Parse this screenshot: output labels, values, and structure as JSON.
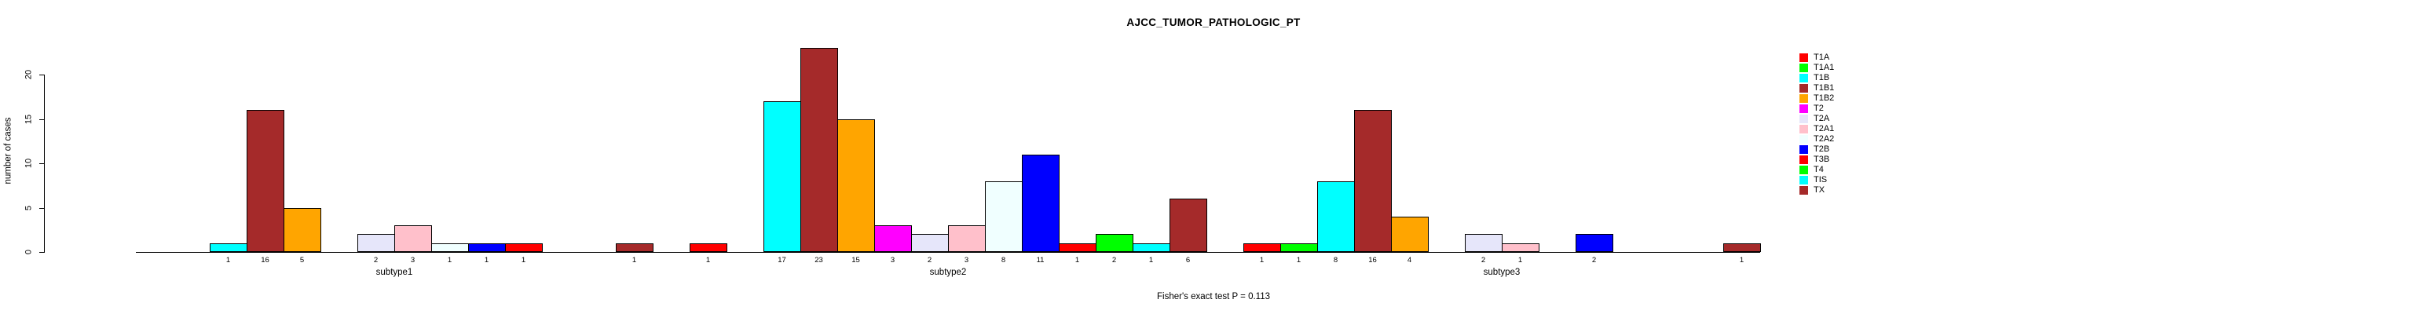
{
  "title": "AJCC_TUMOR_PATHOLOGIC_PT",
  "annotation": "Fisher's exact test P = 0.113",
  "chart_data": {
    "type": "bar",
    "title": "AJCC_TUMOR_PATHOLOGIC_PT",
    "xlabel": "",
    "ylabel": "number of cases",
    "ylim": [
      0,
      20
    ],
    "yticks": [
      0,
      5,
      10,
      15,
      20
    ],
    "grid": false,
    "legend_position": "right",
    "bar_value_labels_shown": "under each nonzero bar",
    "annotation": "Fisher's exact test P = 0.113",
    "categories": [
      "T1A",
      "T1A1",
      "T1B",
      "T1B1",
      "T1B2",
      "T2",
      "T2A",
      "T2A1",
      "T2A2",
      "T2B",
      "T3B",
      "T4",
      "TIS",
      "TX"
    ],
    "category_colors": [
      "#FF0000",
      "#00FF00",
      "#00FFFF",
      "#A52A2A",
      "#FFA500",
      "#FF00FF",
      "#E6E6FA",
      "#FFC0CB",
      "#F0FFFF",
      "#0000FF",
      "#FF0000",
      "#00FF00",
      "#00FFFF",
      "#A52A2A"
    ],
    "groups": [
      "subtype1",
      "subtype2",
      "subtype3"
    ],
    "series": [
      {
        "name": "subtype1",
        "values": [
          0,
          0,
          1,
          16,
          5,
          0,
          2,
          3,
          1,
          1,
          1,
          0,
          0,
          1
        ]
      },
      {
        "name": "subtype2",
        "values": [
          1,
          0,
          17,
          23,
          15,
          3,
          2,
          3,
          8,
          11,
          1,
          2,
          1,
          6
        ]
      },
      {
        "name": "subtype3",
        "values": [
          1,
          1,
          8,
          16,
          4,
          0,
          2,
          1,
          0,
          2,
          0,
          0,
          0,
          1
        ]
      }
    ],
    "colors": {
      "axis": "#000000",
      "text": "#000000",
      "background": "#FFFFFF",
      "bar_border": "#000000"
    }
  }
}
